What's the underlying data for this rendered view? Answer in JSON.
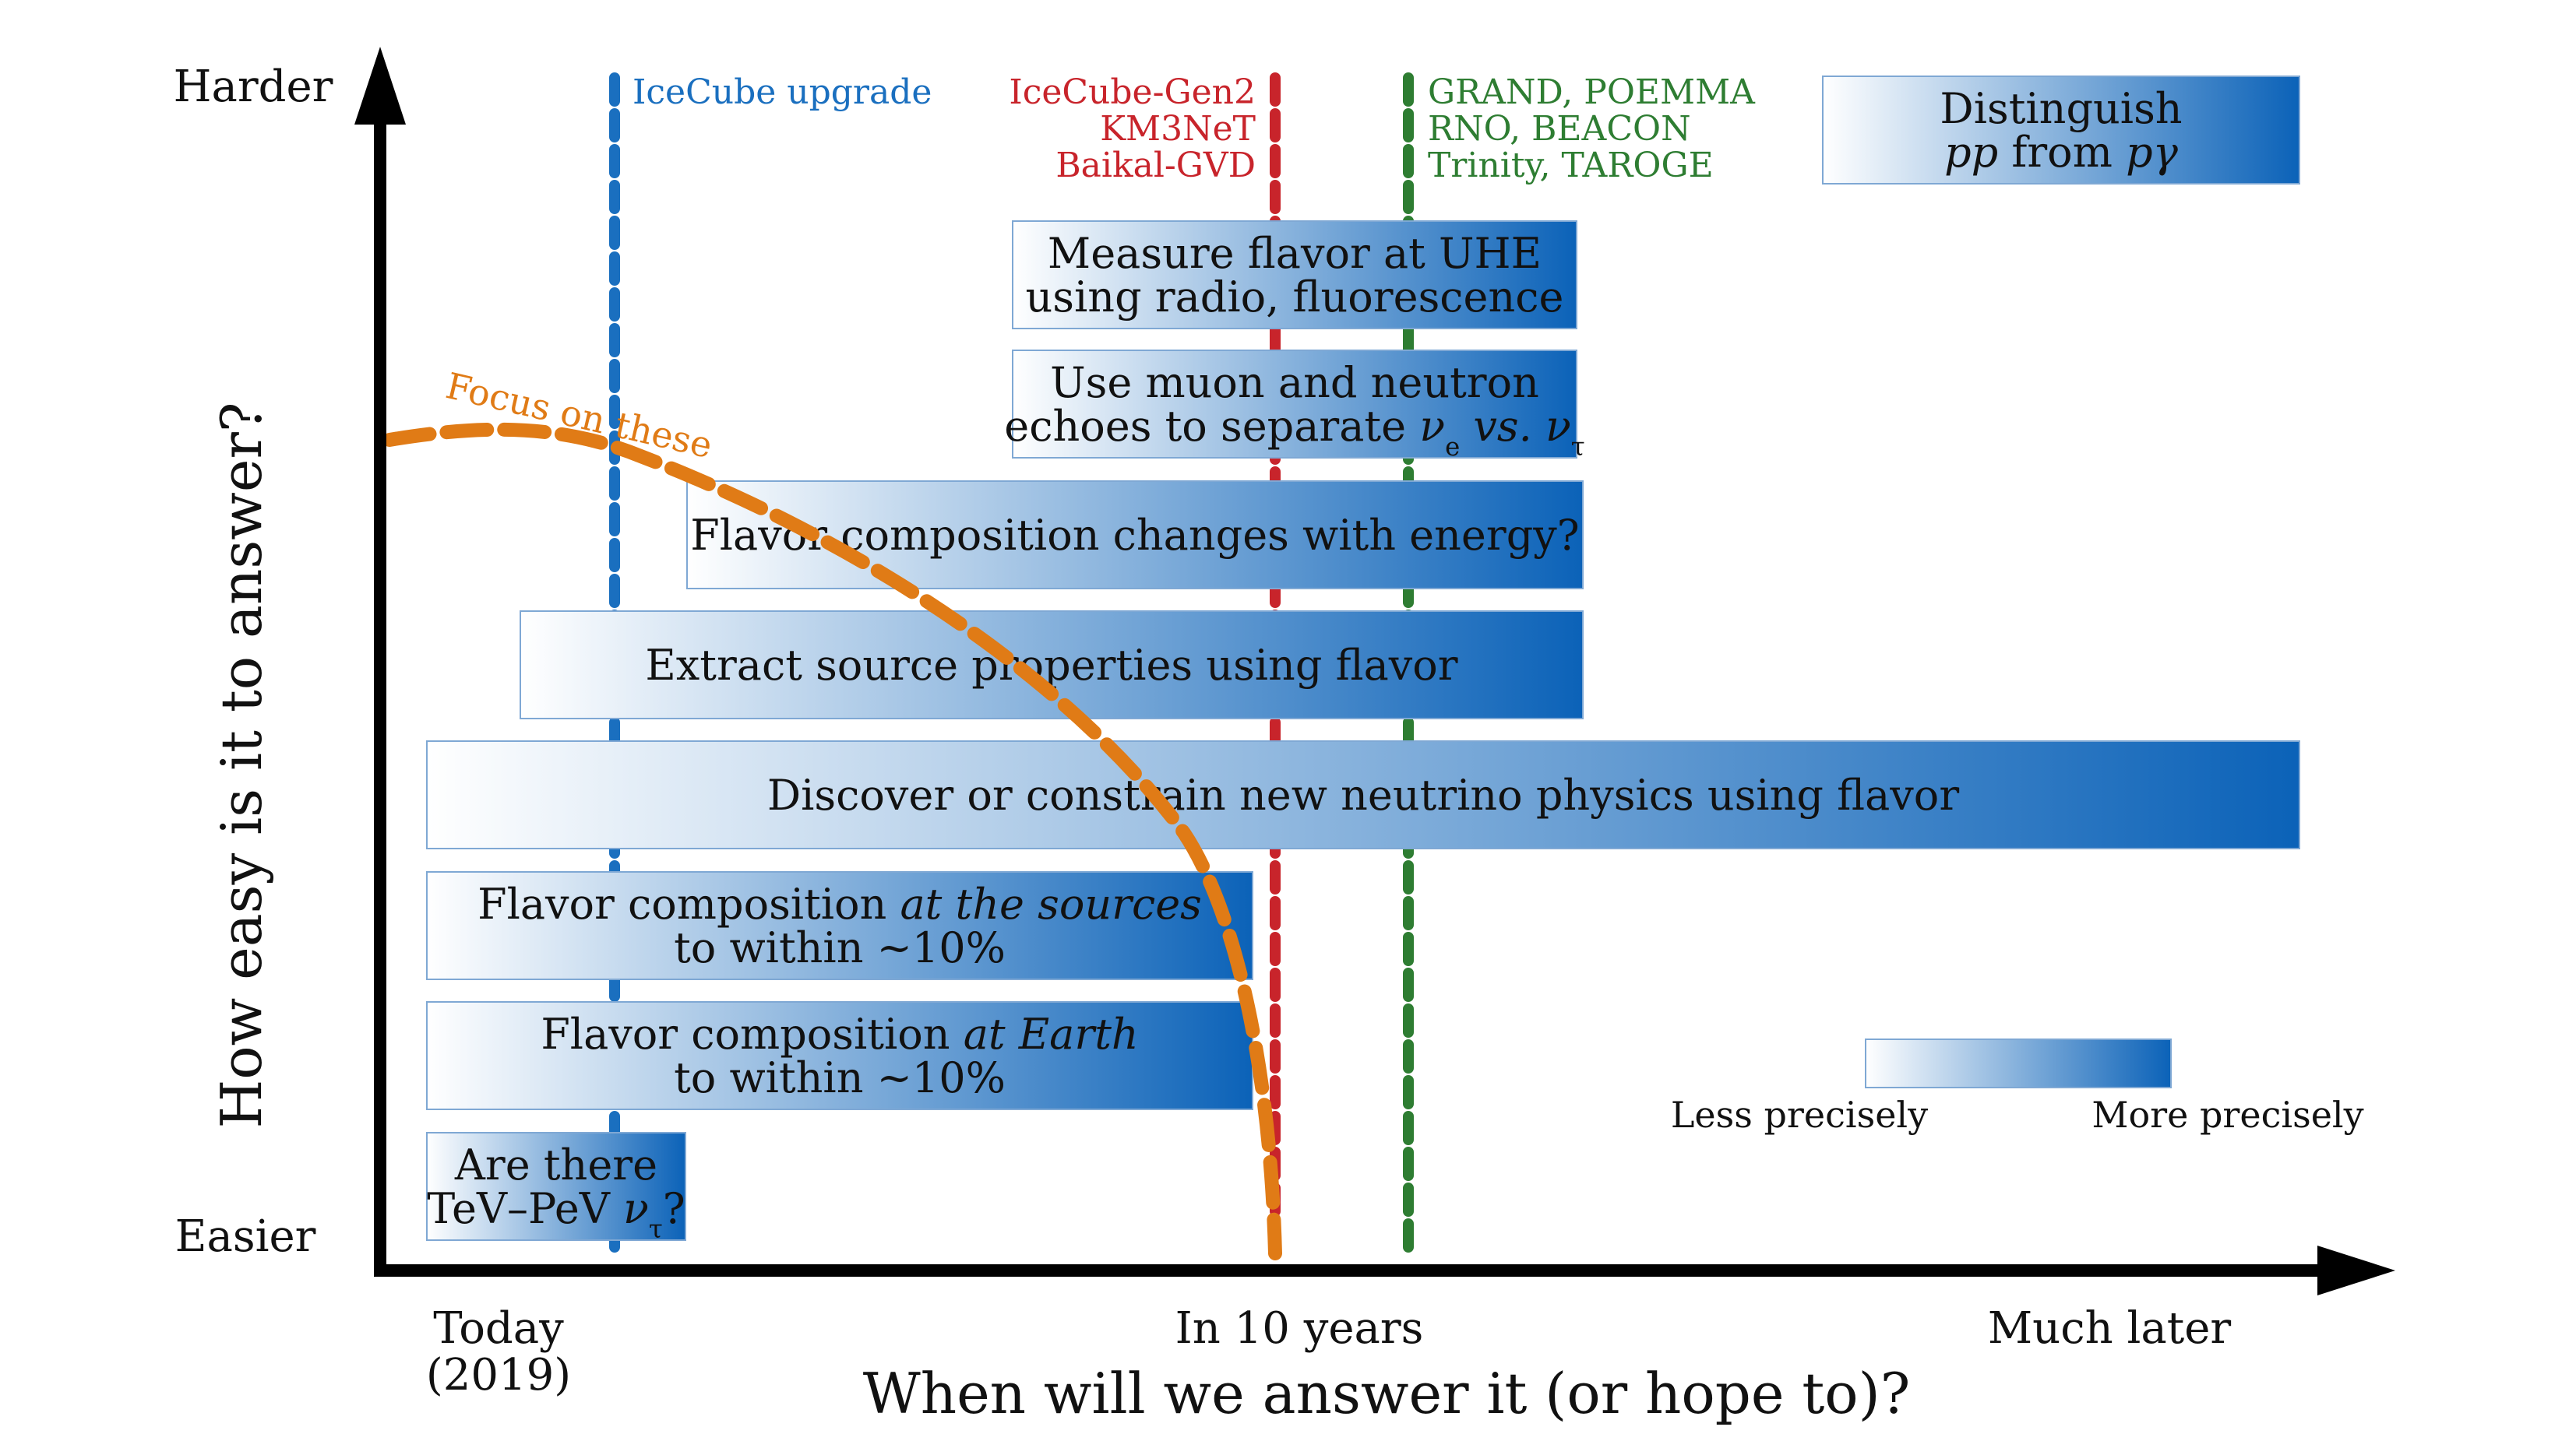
{
  "axes": {
    "y_label": "How easy is it to answer?",
    "y_top": "Harder",
    "y_bottom": "Easier",
    "x_label": "When will we answer it (or hope to)?",
    "x_ticks": [
      {
        "line1": "Today",
        "line2": "(2019)"
      },
      {
        "line1": "In 10 years",
        "line2": ""
      },
      {
        "line1": "Much later",
        "line2": ""
      }
    ]
  },
  "experiments": [
    {
      "lines": [
        "IceCube upgrade"
      ],
      "color": "#1a6fbf"
    },
    {
      "lines": [
        "IceCube-Gen2",
        "KM3NeT",
        "Baikal-GVD"
      ],
      "color": "#c8242b"
    },
    {
      "lines": [
        "GRAND, POEMMA",
        "RNO, BEACON",
        "Trinity, TAROGE"
      ],
      "color": "#2e7d32"
    }
  ],
  "focus_label": "Focus on these",
  "focus_color": "#e07b16",
  "questions": [
    {
      "id": "flavor-pp-pgamma",
      "lines": [
        [
          {
            "t": "Distinguish"
          }
        ],
        [
          {
            "t": "pp",
            "i": true
          },
          {
            "t": " from "
          },
          {
            "t": "pγ",
            "i": true
          }
        ]
      ]
    },
    {
      "id": "flavor-uhe",
      "lines": [
        [
          {
            "t": "Measure flavor at UHE"
          }
        ],
        [
          {
            "t": "using radio, fluorescence"
          }
        ]
      ]
    },
    {
      "id": "muon-neutron-echoes",
      "lines": [
        [
          {
            "t": "Use muon and neutron"
          }
        ],
        [
          {
            "t": "echoes to separate "
          },
          {
            "t": "ν",
            "i": true
          },
          {
            "t": "e",
            "sub": true
          },
          {
            "t": " vs. ",
            "i": true
          },
          {
            "t": "ν",
            "i": true
          },
          {
            "t": "τ",
            "sub": true
          }
        ]
      ]
    },
    {
      "id": "flavor-energy",
      "lines": [
        [
          {
            "t": "Flavor composition changes with energy?"
          }
        ]
      ]
    },
    {
      "id": "source-properties",
      "lines": [
        [
          {
            "t": "Extract source properties using flavor"
          }
        ]
      ]
    },
    {
      "id": "new-physics",
      "lines": [
        [
          {
            "t": "Discover or constrain new neutrino physics using flavor"
          }
        ]
      ]
    },
    {
      "id": "flavor-sources",
      "lines": [
        [
          {
            "t": "Flavor composition "
          },
          {
            "t": "at the sources",
            "i": true
          }
        ],
        [
          {
            "t": "to within ~10%"
          }
        ]
      ]
    },
    {
      "id": "flavor-earth",
      "lines": [
        [
          {
            "t": "Flavor composition "
          },
          {
            "t": "at Earth",
            "i": true
          }
        ],
        [
          {
            "t": "to within ~10%"
          }
        ]
      ]
    },
    {
      "id": "tev-pev-nutau",
      "lines": [
        [
          {
            "t": "Are there"
          }
        ],
        [
          {
            "t": "TeV–PeV "
          },
          {
            "t": "ν",
            "i": true
          },
          {
            "t": "τ",
            "sub": true
          },
          {
            "t": "?"
          }
        ]
      ]
    }
  ],
  "legend": {
    "less": "Less precisely",
    "more": "More precisely",
    "color_light": "#ffffff",
    "color_dark": "#0b62b8"
  },
  "colors": {
    "axis": "#000000",
    "box_border": "#7fa8d4",
    "text": "#111111"
  }
}
